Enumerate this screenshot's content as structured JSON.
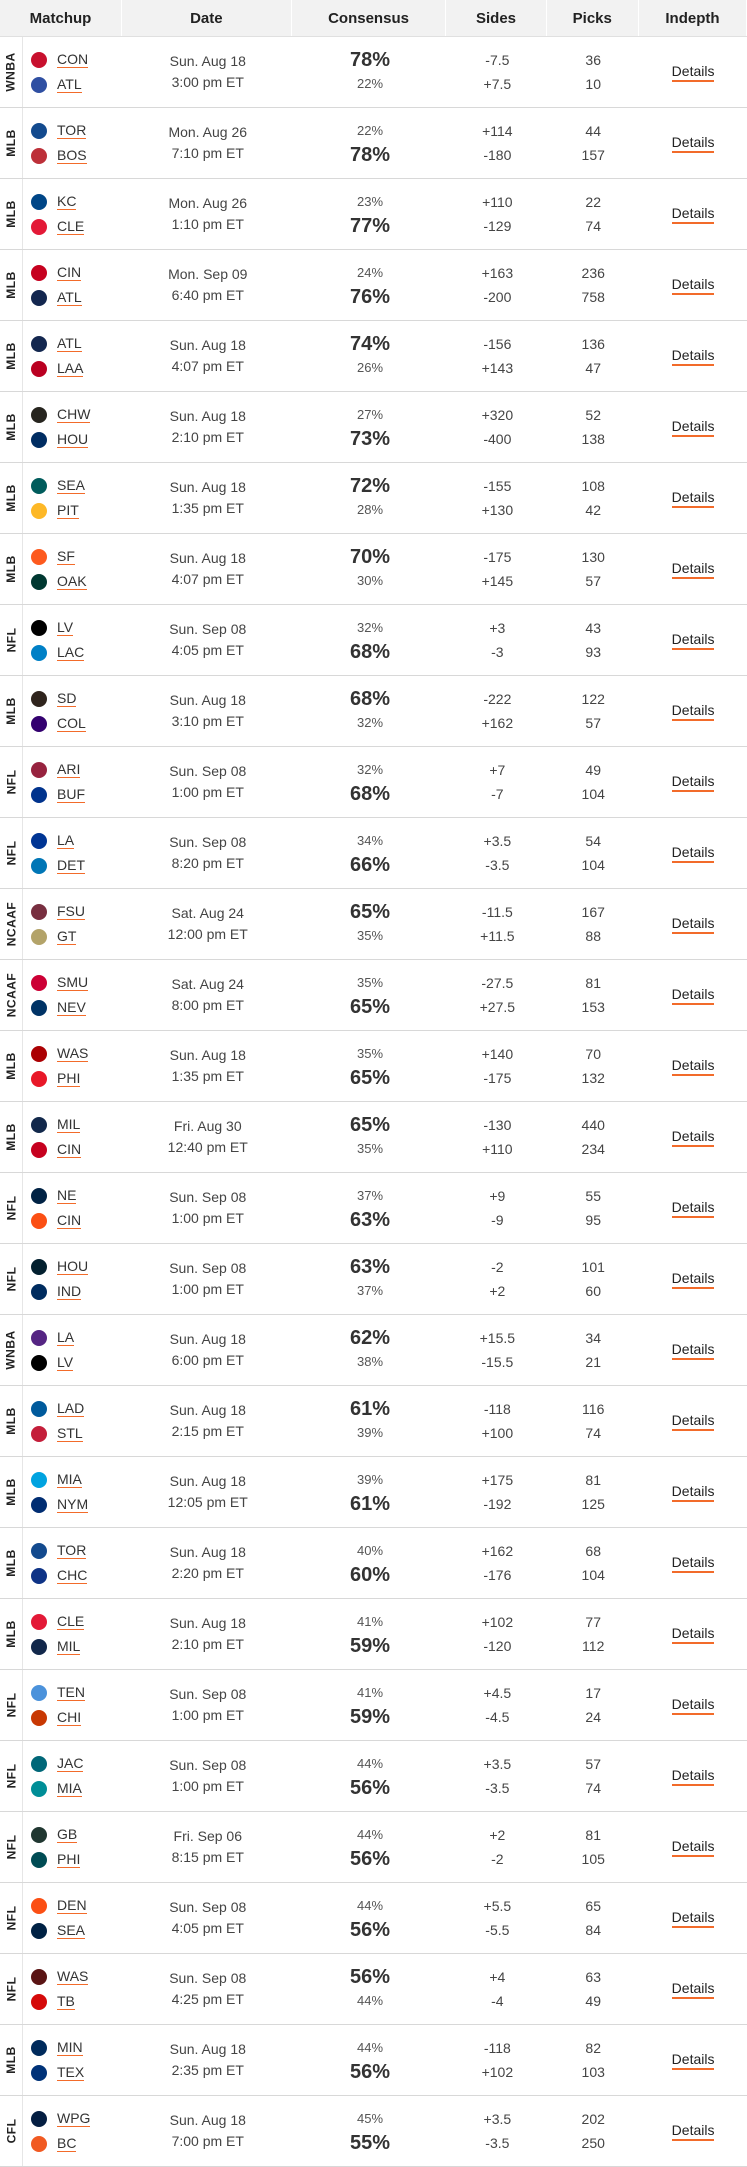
{
  "columns": [
    "Matchup",
    "Date",
    "Consensus",
    "Sides",
    "Picks",
    "Indepth"
  ],
  "details_label": "Details",
  "rows": [
    {
      "league": "WNBA",
      "t1": "CON",
      "t2": "ATL",
      "c1": "#c8102e",
      "c2": "#2f4fa2",
      "day": "Sun. Aug 18",
      "time": "3:00 pm ET",
      "p1": "78%",
      "p2": "22%",
      "big": 1,
      "s1": "-7.5",
      "s2": "+7.5",
      "k1": "36",
      "k2": "10"
    },
    {
      "league": "MLB",
      "t1": "TOR",
      "t2": "BOS",
      "c1": "#134a8e",
      "c2": "#bd3039",
      "day": "Mon. Aug 26",
      "time": "7:10 pm ET",
      "p1": "22%",
      "p2": "78%",
      "big": 2,
      "s1": "+114",
      "s2": "-180",
      "k1": "44",
      "k2": "157"
    },
    {
      "league": "MLB",
      "t1": "KC",
      "t2": "CLE",
      "c1": "#004687",
      "c2": "#e31937",
      "day": "Mon. Aug 26",
      "time": "1:10 pm ET",
      "p1": "23%",
      "p2": "77%",
      "big": 2,
      "s1": "+110",
      "s2": "-129",
      "k1": "22",
      "k2": "74"
    },
    {
      "league": "MLB",
      "t1": "CIN",
      "t2": "ATL",
      "c1": "#c6011f",
      "c2": "#13274f",
      "day": "Mon. Sep 09",
      "time": "6:40 pm ET",
      "p1": "24%",
      "p2": "76%",
      "big": 2,
      "s1": "+163",
      "s2": "-200",
      "k1": "236",
      "k2": "758"
    },
    {
      "league": "MLB",
      "t1": "ATL",
      "t2": "LAA",
      "c1": "#13274f",
      "c2": "#ba0021",
      "day": "Sun. Aug 18",
      "time": "4:07 pm ET",
      "p1": "74%",
      "p2": "26%",
      "big": 1,
      "s1": "-156",
      "s2": "+143",
      "k1": "136",
      "k2": "47"
    },
    {
      "league": "MLB",
      "t1": "CHW",
      "t2": "HOU",
      "c1": "#27251f",
      "c2": "#002d62",
      "day": "Sun. Aug 18",
      "time": "2:10 pm ET",
      "p1": "27%",
      "p2": "73%",
      "big": 2,
      "s1": "+320",
      "s2": "-400",
      "k1": "52",
      "k2": "138"
    },
    {
      "league": "MLB",
      "t1": "SEA",
      "t2": "PIT",
      "c1": "#005c5c",
      "c2": "#fdb827",
      "day": "Sun. Aug 18",
      "time": "1:35 pm ET",
      "p1": "72%",
      "p2": "28%",
      "big": 1,
      "s1": "-155",
      "s2": "+130",
      "k1": "108",
      "k2": "42"
    },
    {
      "league": "MLB",
      "t1": "SF",
      "t2": "OAK",
      "c1": "#fd5a1e",
      "c2": "#003831",
      "day": "Sun. Aug 18",
      "time": "4:07 pm ET",
      "p1": "70%",
      "p2": "30%",
      "big": 1,
      "s1": "-175",
      "s2": "+145",
      "k1": "130",
      "k2": "57"
    },
    {
      "league": "NFL",
      "t1": "LV",
      "t2": "LAC",
      "c1": "#000000",
      "c2": "#0080c6",
      "day": "Sun. Sep 08",
      "time": "4:05 pm ET",
      "p1": "32%",
      "p2": "68%",
      "big": 2,
      "s1": "+3",
      "s2": "-3",
      "k1": "43",
      "k2": "93"
    },
    {
      "league": "MLB",
      "t1": "SD",
      "t2": "COL",
      "c1": "#2f241d",
      "c2": "#33006f",
      "day": "Sun. Aug 18",
      "time": "3:10 pm ET",
      "p1": "68%",
      "p2": "32%",
      "big": 1,
      "s1": "-222",
      "s2": "+162",
      "k1": "122",
      "k2": "57"
    },
    {
      "league": "NFL",
      "t1": "ARI",
      "t2": "BUF",
      "c1": "#97233f",
      "c2": "#00338d",
      "day": "Sun. Sep 08",
      "time": "1:00 pm ET",
      "p1": "32%",
      "p2": "68%",
      "big": 2,
      "s1": "+7",
      "s2": "-7",
      "k1": "49",
      "k2": "104"
    },
    {
      "league": "NFL",
      "t1": "LA",
      "t2": "DET",
      "c1": "#003594",
      "c2": "#0076b6",
      "day": "Sun. Sep 08",
      "time": "8:20 pm ET",
      "p1": "34%",
      "p2": "66%",
      "big": 2,
      "s1": "+3.5",
      "s2": "-3.5",
      "k1": "54",
      "k2": "104"
    },
    {
      "league": "NCAAF",
      "t1": "FSU",
      "t2": "GT",
      "c1": "#782f40",
      "c2": "#b3a369",
      "day": "Sat. Aug 24",
      "time": "12:00 pm ET",
      "p1": "65%",
      "p2": "35%",
      "big": 1,
      "s1": "-11.5",
      "s2": "+11.5",
      "k1": "167",
      "k2": "88"
    },
    {
      "league": "NCAAF",
      "t1": "SMU",
      "t2": "NEV",
      "c1": "#cc0035",
      "c2": "#003366",
      "day": "Sat. Aug 24",
      "time": "8:00 pm ET",
      "p1": "35%",
      "p2": "65%",
      "big": 2,
      "s1": "-27.5",
      "s2": "+27.5",
      "k1": "81",
      "k2": "153"
    },
    {
      "league": "MLB",
      "t1": "WAS",
      "t2": "PHI",
      "c1": "#ab0003",
      "c2": "#e81828",
      "day": "Sun. Aug 18",
      "time": "1:35 pm ET",
      "p1": "35%",
      "p2": "65%",
      "big": 2,
      "s1": "+140",
      "s2": "-175",
      "k1": "70",
      "k2": "132"
    },
    {
      "league": "MLB",
      "t1": "MIL",
      "t2": "CIN",
      "c1": "#12284b",
      "c2": "#c6011f",
      "day": "Fri. Aug 30",
      "time": "12:40 pm ET",
      "p1": "65%",
      "p2": "35%",
      "big": 1,
      "s1": "-130",
      "s2": "+110",
      "k1": "440",
      "k2": "234"
    },
    {
      "league": "NFL",
      "t1": "NE",
      "t2": "CIN",
      "c1": "#002244",
      "c2": "#fb4f14",
      "day": "Sun. Sep 08",
      "time": "1:00 pm ET",
      "p1": "37%",
      "p2": "63%",
      "big": 2,
      "s1": "+9",
      "s2": "-9",
      "k1": "55",
      "k2": "95"
    },
    {
      "league": "NFL",
      "t1": "HOU",
      "t2": "IND",
      "c1": "#03202f",
      "c2": "#002c5f",
      "day": "Sun. Sep 08",
      "time": "1:00 pm ET",
      "p1": "63%",
      "p2": "37%",
      "big": 1,
      "s1": "-2",
      "s2": "+2",
      "k1": "101",
      "k2": "60"
    },
    {
      "league": "WNBA",
      "t1": "LA",
      "t2": "LV",
      "c1": "#552583",
      "c2": "#000000",
      "day": "Sun. Aug 18",
      "time": "6:00 pm ET",
      "p1": "62%",
      "p2": "38%",
      "big": 1,
      "s1": "+15.5",
      "s2": "-15.5",
      "k1": "34",
      "k2": "21"
    },
    {
      "league": "MLB",
      "t1": "LAD",
      "t2": "STL",
      "c1": "#005a9c",
      "c2": "#c41e3a",
      "day": "Sun. Aug 18",
      "time": "2:15 pm ET",
      "p1": "61%",
      "p2": "39%",
      "big": 1,
      "s1": "-118",
      "s2": "+100",
      "k1": "116",
      "k2": "74"
    },
    {
      "league": "MLB",
      "t1": "MIA",
      "t2": "NYM",
      "c1": "#00a3e0",
      "c2": "#002d72",
      "day": "Sun. Aug 18",
      "time": "12:05 pm ET",
      "p1": "39%",
      "p2": "61%",
      "big": 2,
      "s1": "+175",
      "s2": "-192",
      "k1": "81",
      "k2": "125"
    },
    {
      "league": "MLB",
      "t1": "TOR",
      "t2": "CHC",
      "c1": "#134a8e",
      "c2": "#0e3386",
      "day": "Sun. Aug 18",
      "time": "2:20 pm ET",
      "p1": "40%",
      "p2": "60%",
      "big": 2,
      "s1": "+162",
      "s2": "-176",
      "k1": "68",
      "k2": "104"
    },
    {
      "league": "MLB",
      "t1": "CLE",
      "t2": "MIL",
      "c1": "#e31937",
      "c2": "#12284b",
      "day": "Sun. Aug 18",
      "time": "2:10 pm ET",
      "p1": "41%",
      "p2": "59%",
      "big": 2,
      "s1": "+102",
      "s2": "-120",
      "k1": "77",
      "k2": "112"
    },
    {
      "league": "NFL",
      "t1": "TEN",
      "t2": "CHI",
      "c1": "#4b92db",
      "c2": "#c83803",
      "day": "Sun. Sep 08",
      "time": "1:00 pm ET",
      "p1": "41%",
      "p2": "59%",
      "big": 2,
      "s1": "+4.5",
      "s2": "-4.5",
      "k1": "17",
      "k2": "24"
    },
    {
      "league": "NFL",
      "t1": "JAC",
      "t2": "MIA",
      "c1": "#006778",
      "c2": "#008e97",
      "day": "Sun. Sep 08",
      "time": "1:00 pm ET",
      "p1": "44%",
      "p2": "56%",
      "big": 2,
      "s1": "+3.5",
      "s2": "-3.5",
      "k1": "57",
      "k2": "74"
    },
    {
      "league": "NFL",
      "t1": "GB",
      "t2": "PHI",
      "c1": "#203731",
      "c2": "#004c54",
      "day": "Fri. Sep 06",
      "time": "8:15 pm ET",
      "p1": "44%",
      "p2": "56%",
      "big": 2,
      "s1": "+2",
      "s2": "-2",
      "k1": "81",
      "k2": "105"
    },
    {
      "league": "NFL",
      "t1": "DEN",
      "t2": "SEA",
      "c1": "#fb4f14",
      "c2": "#002244",
      "day": "Sun. Sep 08",
      "time": "4:05 pm ET",
      "p1": "44%",
      "p2": "56%",
      "big": 2,
      "s1": "+5.5",
      "s2": "-5.5",
      "k1": "65",
      "k2": "84"
    },
    {
      "league": "NFL",
      "t1": "WAS",
      "t2": "TB",
      "c1": "#5a1414",
      "c2": "#d50a0a",
      "day": "Sun. Sep 08",
      "time": "4:25 pm ET",
      "p1": "56%",
      "p2": "44%",
      "big": 1,
      "s1": "+4",
      "s2": "-4",
      "k1": "63",
      "k2": "49"
    },
    {
      "league": "MLB",
      "t1": "MIN",
      "t2": "TEX",
      "c1": "#002b5c",
      "c2": "#003278",
      "day": "Sun. Aug 18",
      "time": "2:35 pm ET",
      "p1": "44%",
      "p2": "56%",
      "big": 2,
      "s1": "-118",
      "s2": "+102",
      "k1": "82",
      "k2": "103"
    },
    {
      "league": "CFL",
      "t1": "WPG",
      "t2": "BC",
      "c1": "#041e42",
      "c2": "#f15a22",
      "day": "Sun. Aug 18",
      "time": "7:00 pm ET",
      "p1": "45%",
      "p2": "55%",
      "big": 2,
      "s1": "+3.5",
      "s2": "-3.5",
      "k1": "202",
      "k2": "250"
    }
  ]
}
